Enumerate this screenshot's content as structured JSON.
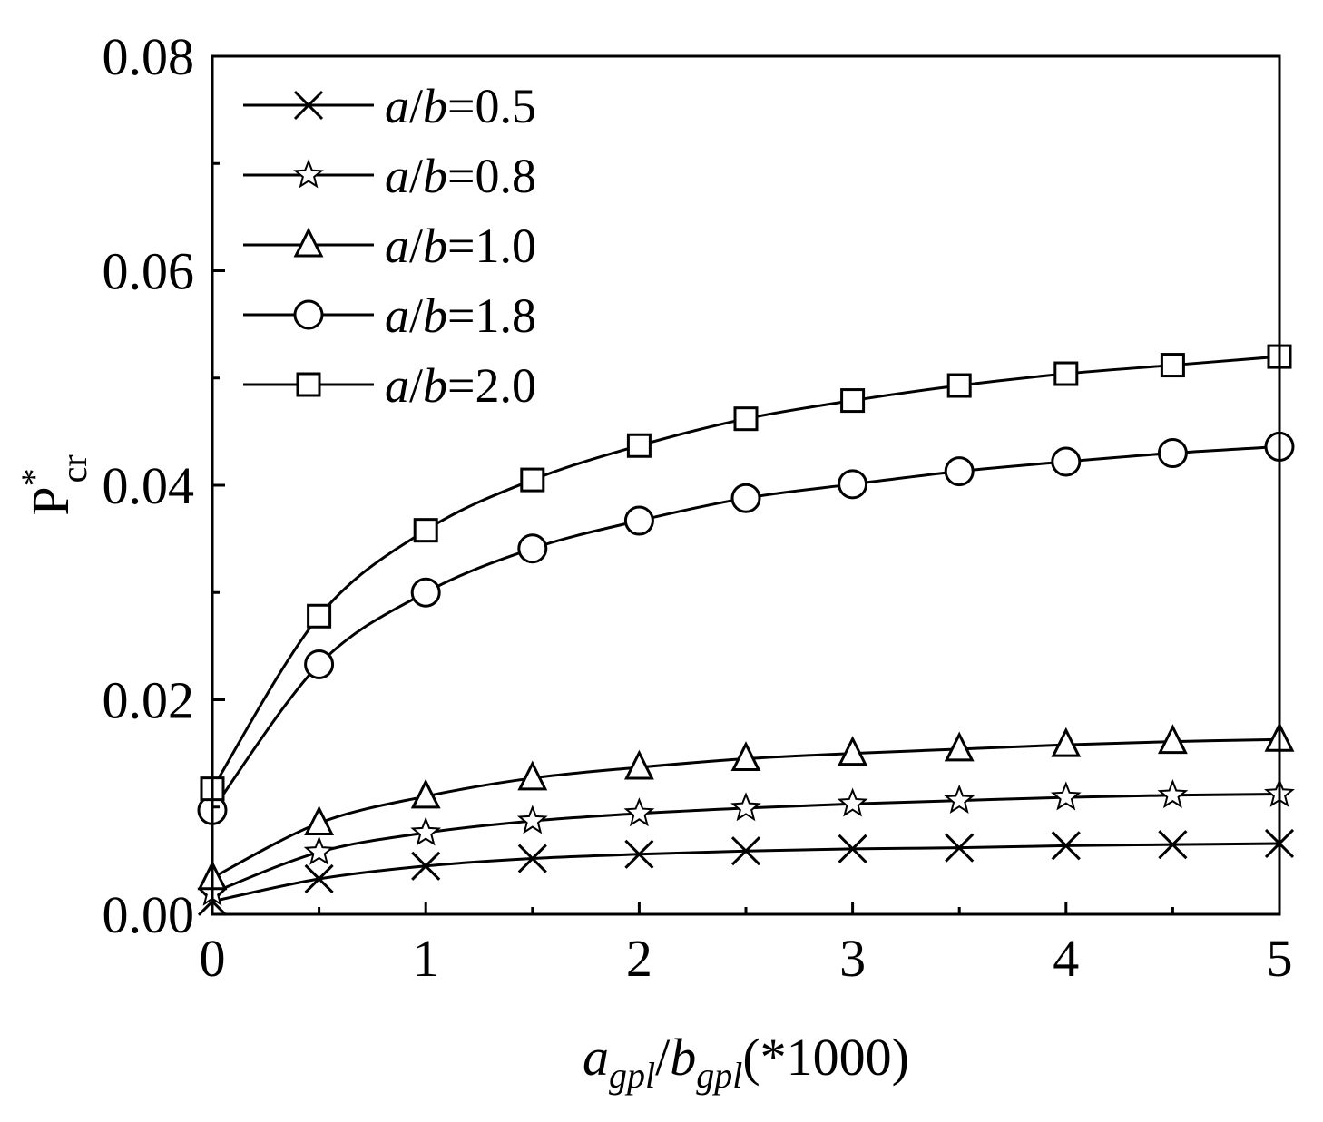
{
  "chart_data": {
    "type": "line",
    "xlabel": "agpl/bgpl(*1000)",
    "xlabel_parts": {
      "var_a": "a",
      "sub_a": "gpl",
      "slash": "/",
      "var_b": "b",
      "sub_b": "gpl",
      "suffix": "(*1000)"
    },
    "ylabel": "P*cr",
    "ylabel_parts": {
      "main": "P",
      "sup": "*",
      "sub": "cr"
    },
    "xlim": [
      0,
      5
    ],
    "ylim": [
      0,
      0.08
    ],
    "xticks": [
      {
        "value": 0,
        "label": "0"
      },
      {
        "value": 1,
        "label": "1"
      },
      {
        "value": 2,
        "label": "2"
      },
      {
        "value": 3,
        "label": "3"
      },
      {
        "value": 4,
        "label": "4"
      },
      {
        "value": 5,
        "label": "5"
      }
    ],
    "yticks": [
      {
        "value": 0,
        "label": "0.00"
      },
      {
        "value": 0.02,
        "label": "0.02"
      },
      {
        "value": 0.04,
        "label": "0.04"
      },
      {
        "value": 0.06,
        "label": "0.06"
      },
      {
        "value": 0.08,
        "label": "0.08"
      }
    ],
    "x": [
      0,
      0.5,
      1,
      1.5,
      2,
      2.5,
      3,
      3.5,
      4,
      4.5,
      5
    ],
    "grid": false,
    "legend_position": "top-left",
    "line_color": "#000000",
    "series": [
      {
        "name": "a/b=0.5",
        "legend": {
          "var_a": "a",
          "slash": "/",
          "var_b": "b",
          "eq": "=0.5"
        },
        "marker": "x",
        "values": [
          0.0012,
          0.0033,
          0.0045,
          0.0052,
          0.0056,
          0.0059,
          0.0061,
          0.0062,
          0.0064,
          0.0065,
          0.0066
        ]
      },
      {
        "name": "a/b=0.8",
        "legend": {
          "var_a": "a",
          "slash": "/",
          "var_b": "b",
          "eq": "=0.8"
        },
        "marker": "star",
        "values": [
          0.002,
          0.0058,
          0.0076,
          0.0087,
          0.0094,
          0.0099,
          0.0103,
          0.0106,
          0.0109,
          0.0111,
          0.0112
        ]
      },
      {
        "name": "a/b=1.0",
        "legend": {
          "var_a": "a",
          "slash": "/",
          "var_b": "b",
          "eq": "=1.0"
        },
        "marker": "triangle",
        "values": [
          0.0034,
          0.0085,
          0.011,
          0.0127,
          0.0137,
          0.0145,
          0.015,
          0.0154,
          0.0158,
          0.0161,
          0.0163
        ]
      },
      {
        "name": "a/b=1.8",
        "legend": {
          "var_a": "a",
          "slash": "/",
          "var_b": "b",
          "eq": "=1.8"
        },
        "marker": "circle",
        "values": [
          0.0097,
          0.0233,
          0.03,
          0.0341,
          0.0367,
          0.0388,
          0.0401,
          0.0413,
          0.0422,
          0.043,
          0.0436
        ]
      },
      {
        "name": "a/b=2.0",
        "legend": {
          "var_a": "a",
          "slash": "/",
          "var_b": "b",
          "eq": "=2.0"
        },
        "marker": "square",
        "values": [
          0.0117,
          0.0278,
          0.0358,
          0.0405,
          0.0437,
          0.0462,
          0.0479,
          0.0493,
          0.0504,
          0.0512,
          0.052
        ]
      }
    ]
  }
}
